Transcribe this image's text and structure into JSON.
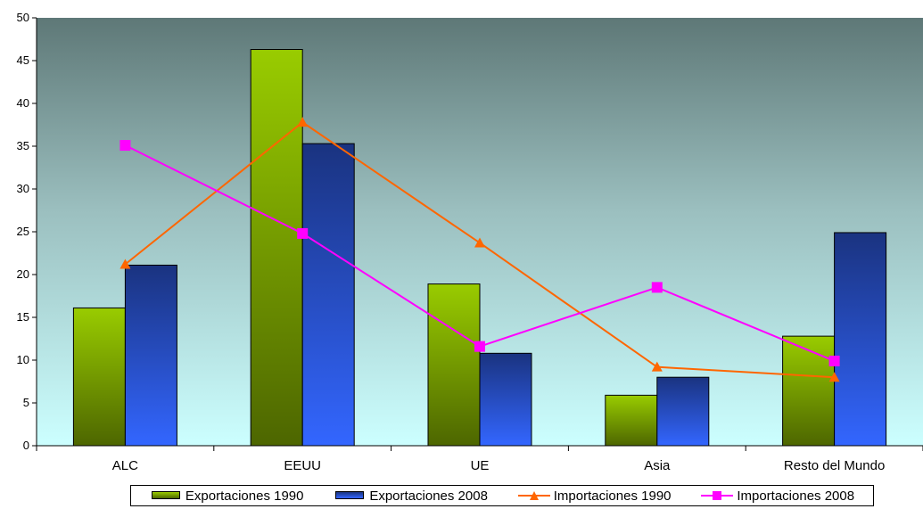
{
  "chart_data": {
    "type": "bar",
    "categories": [
      "ALC",
      "EEUU",
      "UE",
      "Asia",
      "Resto del Mundo"
    ],
    "ylim": [
      0,
      50
    ],
    "yticks": [
      0,
      5,
      10,
      15,
      20,
      25,
      30,
      35,
      40,
      45,
      50
    ],
    "xlabel": "",
    "ylabel": "",
    "grid": false,
    "legend_position": "bottom",
    "series": [
      {
        "name": "Exportaciones 1990",
        "kind": "bar",
        "color": "#99cc00",
        "values": [
          16.1,
          46.3,
          18.9,
          5.9,
          12.8
        ]
      },
      {
        "name": "Exportaciones 2008",
        "kind": "bar",
        "color": "#3366ff",
        "values": [
          21.1,
          35.3,
          10.8,
          8.0,
          24.9
        ]
      },
      {
        "name": "Importaciones 1990",
        "kind": "line",
        "marker": "triangle",
        "color": "#ff6600",
        "values": [
          21.2,
          37.8,
          23.7,
          9.2,
          8.0
        ]
      },
      {
        "name": "Importaciones 2008",
        "kind": "line",
        "marker": "square",
        "color": "#ff00ff",
        "values": [
          35.1,
          24.8,
          11.6,
          18.5,
          9.9
        ]
      }
    ]
  }
}
